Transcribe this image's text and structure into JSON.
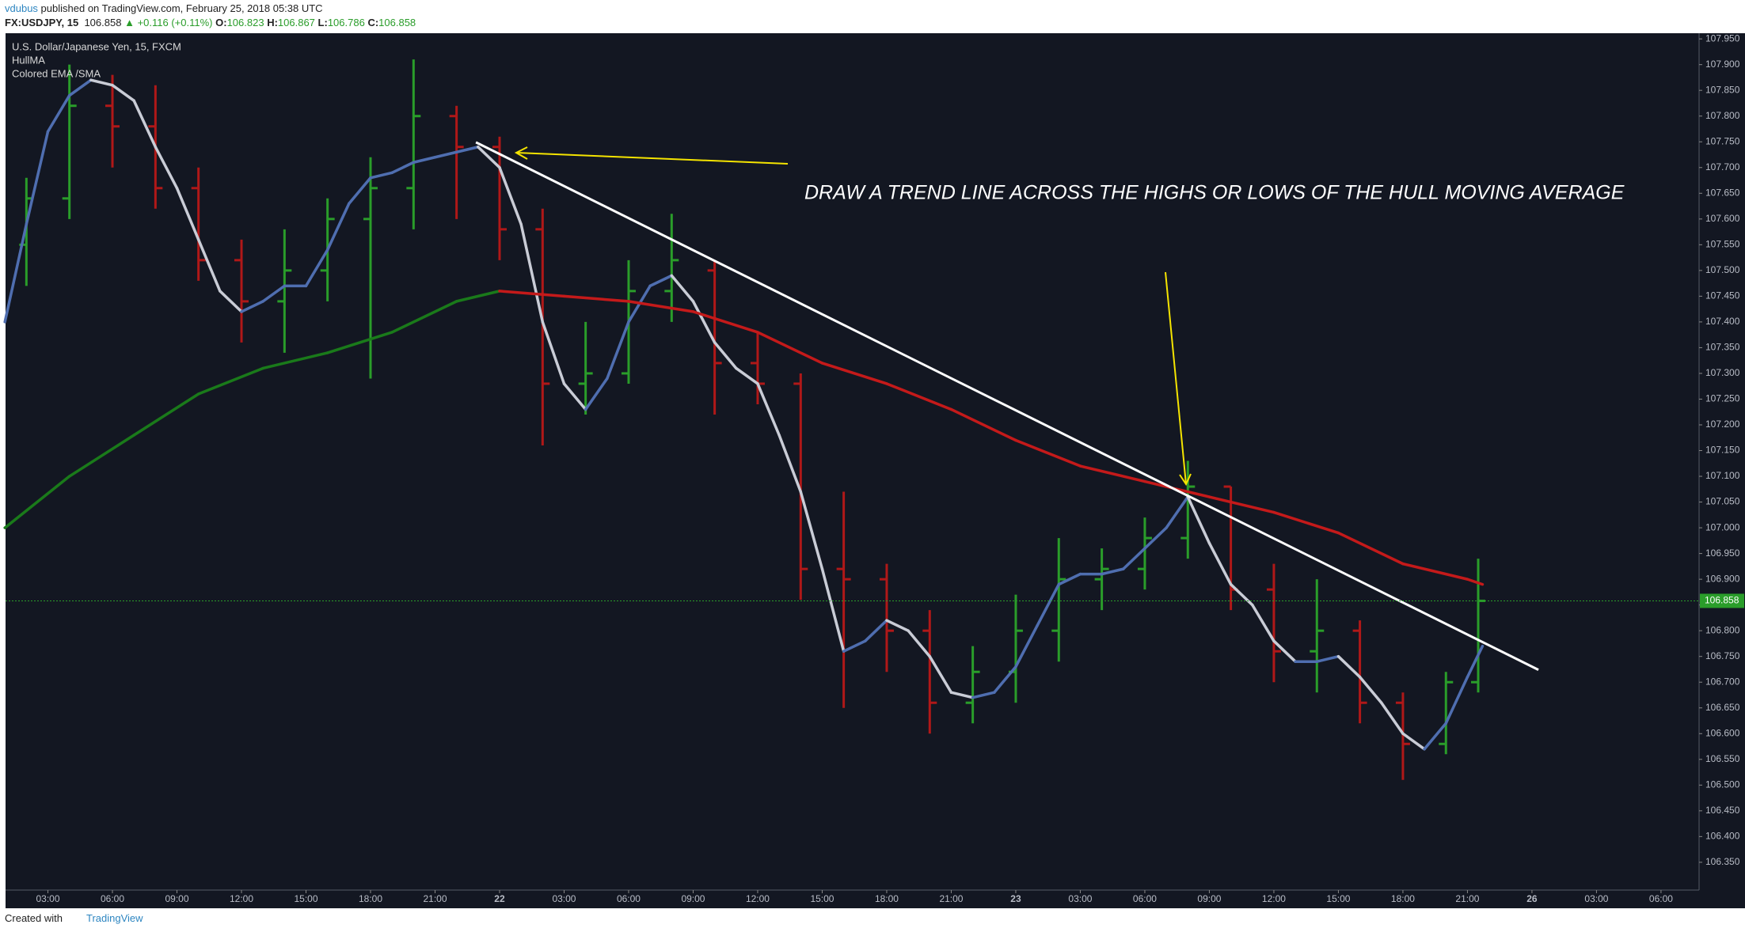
{
  "header": {
    "user": "vdubus",
    "text": "published on TradingView.com, February 25, 2018 05:38 UTC"
  },
  "quote": {
    "symbol": "FX:USDJPY, 15",
    "last": 106.858,
    "change": "+0.116 (+0.11%)",
    "open_label": "O:",
    "open": 106.823,
    "high_label": "H:",
    "high": 106.867,
    "low_label": "L:",
    "low": 106.786,
    "close_label": "C:",
    "close": 106.858
  },
  "footer": {
    "created": "Created with",
    "brand": "TradingView"
  },
  "chart_data": {
    "type": "ohlc",
    "title": "U.S. Dollar/Japanese Yen, 15, FXCM",
    "annotation": "DRAW A TREND LINE ACROSS THE HIGHS OR LOWS OF THE HULL MOVING AVERAGE",
    "up_color": "#2a9d2a",
    "down_color": "#b01818",
    "x": [
      2,
      4,
      6,
      8,
      10,
      12,
      14,
      16,
      18,
      20,
      22,
      24,
      26,
      28,
      30,
      32,
      34,
      36,
      38,
      40,
      42,
      44,
      46,
      48,
      50,
      52,
      54,
      56,
      58,
      60,
      62,
      64,
      66,
      68,
      69.5
    ],
    "open": [
      107.55,
      107.64,
      107.82,
      107.78,
      107.66,
      107.52,
      107.44,
      107.5,
      107.6,
      107.66,
      107.8,
      107.74,
      107.58,
      107.28,
      107.3,
      107.46,
      107.5,
      107.32,
      107.28,
      106.92,
      106.9,
      106.8,
      106.66,
      106.72,
      106.8,
      106.9,
      106.92,
      106.98,
      107.08,
      106.88,
      106.76,
      106.8,
      106.66,
      106.58,
      106.7
    ],
    "high": [
      107.68,
      107.9,
      107.88,
      107.86,
      107.7,
      107.56,
      107.58,
      107.64,
      107.72,
      107.91,
      107.82,
      107.76,
      107.62,
      107.4,
      107.52,
      107.61,
      107.52,
      107.38,
      107.3,
      107.07,
      106.93,
      106.84,
      106.77,
      106.87,
      106.98,
      106.96,
      107.02,
      107.13,
      107.08,
      106.93,
      106.9,
      106.82,
      106.68,
      106.72,
      106.94
    ],
    "low": [
      107.47,
      107.6,
      107.7,
      107.62,
      107.48,
      107.36,
      107.34,
      107.44,
      107.29,
      107.58,
      107.6,
      107.52,
      107.16,
      107.22,
      107.28,
      107.4,
      107.22,
      107.24,
      106.86,
      106.65,
      106.72,
      106.6,
      106.62,
      106.66,
      106.74,
      106.84,
      106.88,
      106.94,
      106.84,
      106.7,
      106.68,
      106.62,
      106.51,
      106.56,
      106.68
    ],
    "close": [
      107.64,
      107.82,
      107.78,
      107.66,
      107.52,
      107.44,
      107.5,
      107.6,
      107.66,
      107.8,
      107.74,
      107.58,
      107.28,
      107.3,
      107.46,
      107.52,
      107.32,
      107.28,
      106.92,
      106.9,
      106.8,
      106.66,
      106.72,
      106.8,
      106.9,
      106.92,
      106.98,
      107.08,
      106.88,
      106.76,
      106.8,
      106.66,
      106.58,
      106.7,
      106.858
    ],
    "series": [
      {
        "name": "HullMA",
        "up_color": "#4f6eb0",
        "down_color": "#c9ccd6",
        "x": [
          1,
          2,
          3,
          4,
          5,
          6,
          7,
          8,
          9,
          10,
          11,
          12,
          13,
          14,
          15,
          16,
          17,
          18,
          19,
          20,
          21,
          22,
          23,
          24,
          25,
          26,
          27,
          28,
          29,
          30,
          31,
          32,
          33,
          34,
          35,
          36,
          37,
          38,
          39,
          40,
          41,
          42,
          43,
          44,
          45,
          46,
          47,
          48,
          49,
          50,
          51,
          52,
          53,
          54,
          55,
          56,
          57,
          58,
          59,
          60,
          61,
          62,
          63,
          64,
          65,
          66,
          67,
          68,
          69,
          69.7
        ],
        "values": [
          107.4,
          107.59,
          107.77,
          107.84,
          107.87,
          107.86,
          107.83,
          107.74,
          107.66,
          107.56,
          107.46,
          107.42,
          107.44,
          107.47,
          107.47,
          107.54,
          107.63,
          107.68,
          107.69,
          107.71,
          107.72,
          107.73,
          107.74,
          107.7,
          107.59,
          107.4,
          107.28,
          107.23,
          107.29,
          107.4,
          107.47,
          107.49,
          107.44,
          107.36,
          107.31,
          107.28,
          107.18,
          107.07,
          106.92,
          106.76,
          106.78,
          106.82,
          106.8,
          106.75,
          106.68,
          106.67,
          106.68,
          106.73,
          106.81,
          106.89,
          106.91,
          106.91,
          106.92,
          106.96,
          107.0,
          107.06,
          106.97,
          106.89,
          106.85,
          106.78,
          106.74,
          106.74,
          106.75,
          106.71,
          106.66,
          106.6,
          106.57,
          106.62,
          106.71,
          106.77
        ]
      },
      {
        "name": "Colored EMA /SMA",
        "up_color": "#1a7a1a",
        "down_color": "#c41a1a",
        "x": [
          1,
          4,
          7,
          10,
          13,
          16,
          19,
          22,
          24,
          27,
          30,
          33,
          36,
          39,
          42,
          45,
          48,
          51,
          54,
          57,
          60,
          63,
          66,
          69,
          69.7
        ],
        "values": [
          107.0,
          107.1,
          107.18,
          107.26,
          107.31,
          107.34,
          107.38,
          107.44,
          107.46,
          107.45,
          107.44,
          107.42,
          107.38,
          107.32,
          107.28,
          107.23,
          107.17,
          107.12,
          107.09,
          107.06,
          107.03,
          106.99,
          106.93,
          106.9,
          106.89
        ]
      }
    ],
    "trend_line": {
      "x": [
        22.9,
        72.3
      ],
      "y": [
        107.749,
        106.724
      ]
    },
    "last_price": 106.858,
    "xlim": [
      1.03,
      79.77
    ],
    "ylim": [
      106.296,
      107.961
    ],
    "xticks": [
      {
        "value": 3,
        "label": "03:00"
      },
      {
        "value": 6,
        "label": "06:00"
      },
      {
        "value": 9,
        "label": "09:00"
      },
      {
        "value": 12,
        "label": "12:00"
      },
      {
        "value": 15,
        "label": "15:00"
      },
      {
        "value": 18,
        "label": "18:00"
      },
      {
        "value": 21,
        "label": "21:00"
      },
      {
        "value": 24,
        "label": "22"
      },
      {
        "value": 27,
        "label": "03:00"
      },
      {
        "value": 30,
        "label": "06:00"
      },
      {
        "value": 33,
        "label": "09:00"
      },
      {
        "value": 36,
        "label": "12:00"
      },
      {
        "value": 39,
        "label": "15:00"
      },
      {
        "value": 42,
        "label": "18:00"
      },
      {
        "value": 45,
        "label": "21:00"
      },
      {
        "value": 48,
        "label": "23"
      },
      {
        "value": 51,
        "label": "03:00"
      },
      {
        "value": 54,
        "label": "06:00"
      },
      {
        "value": 57,
        "label": "09:00"
      },
      {
        "value": 60,
        "label": "12:00"
      },
      {
        "value": 63,
        "label": "15:00"
      },
      {
        "value": 66,
        "label": "18:00"
      },
      {
        "value": 69,
        "label": "21:00"
      },
      {
        "value": 72,
        "label": "26"
      },
      {
        "value": 75,
        "label": "03:00"
      },
      {
        "value": 78,
        "label": "06:00"
      }
    ],
    "yticks": [
      {
        "value": 106.35,
        "label": "106.350"
      },
      {
        "value": 106.4,
        "label": "106.400"
      },
      {
        "value": 106.45,
        "label": "106.450"
      },
      {
        "value": 106.5,
        "label": "106.500"
      },
      {
        "value": 106.55,
        "label": "106.550"
      },
      {
        "value": 106.6,
        "label": "106.600"
      },
      {
        "value": 106.65,
        "label": "106.650"
      },
      {
        "value": 106.7,
        "label": "106.700"
      },
      {
        "value": 106.75,
        "label": "106.750"
      },
      {
        "value": 106.8,
        "label": "106.800"
      },
      {
        "value": 106.85,
        "label": "106.850"
      },
      {
        "value": 106.9,
        "label": "106.900"
      },
      {
        "value": 106.95,
        "label": "106.950"
      },
      {
        "value": 107.0,
        "label": "107.000"
      },
      {
        "value": 107.05,
        "label": "107.050"
      },
      {
        "value": 107.1,
        "label": "107.100"
      },
      {
        "value": 107.15,
        "label": "107.150"
      },
      {
        "value": 107.2,
        "label": "107.200"
      },
      {
        "value": 107.25,
        "label": "107.250"
      },
      {
        "value": 107.3,
        "label": "107.300"
      },
      {
        "value": 107.35,
        "label": "107.350"
      },
      {
        "value": 107.4,
        "label": "107.400"
      },
      {
        "value": 107.45,
        "label": "107.450"
      },
      {
        "value": 107.5,
        "label": "107.500"
      },
      {
        "value": 107.55,
        "label": "107.550"
      },
      {
        "value": 107.6,
        "label": "107.600"
      },
      {
        "value": 107.65,
        "label": "107.650"
      },
      {
        "value": 107.7,
        "label": "107.700"
      },
      {
        "value": 107.75,
        "label": "107.750"
      },
      {
        "value": 107.8,
        "label": "107.800"
      },
      {
        "value": 107.85,
        "label": "107.850"
      },
      {
        "value": 107.9,
        "label": "107.900"
      },
      {
        "value": 107.95,
        "label": "107.950"
      }
    ]
  }
}
